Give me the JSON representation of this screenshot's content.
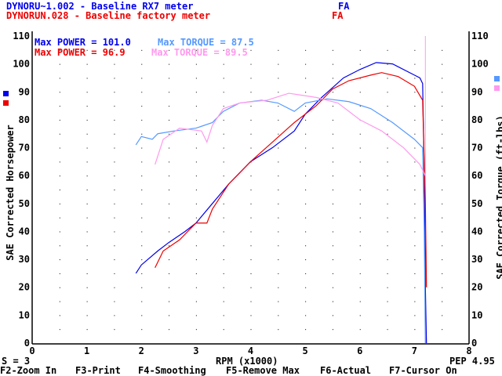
{
  "header": {
    "run1": "DYNORU~1.002 - Baseline RX7 meter",
    "run1_tag": "FA",
    "run2": "DYNORUN.028 - Baseline factory meter",
    "run2_tag": "FA"
  },
  "status": {
    "smoothing": "S = 3",
    "pep": "PEP 4.95"
  },
  "fkeys": [
    "F2-Zoom In",
    "F3-Print",
    "F4-Smoothing",
    "F5-Remove Max",
    "F6-Actual",
    "F7-Cursor On"
  ],
  "colors": {
    "run1_power": "#0000ee",
    "run1_torque": "#5599ff",
    "run2_power": "#ee0000",
    "run2_torque": "#ff99ee"
  },
  "chart_data": {
    "type": "line",
    "xlabel": "RPM (x1000)",
    "ylabel": "SAE Corrected Horsepower",
    "y2label": "SAE Corrected Torque (ft-lbs)",
    "xlim": [
      0,
      8
    ],
    "ylim": [
      0,
      110
    ],
    "xticks": [
      "0",
      "1",
      "2",
      "3",
      "4",
      "5",
      "6",
      "7",
      "8"
    ],
    "yticks": [
      "0",
      "10",
      "20",
      "30",
      "40",
      "50",
      "60",
      "70",
      "80",
      "90",
      "100",
      "110"
    ],
    "grid": "dotted",
    "cursor_rpm": 7.2,
    "legend": [
      {
        "label": "Max POWER = 101.0",
        "color": "#0000ee"
      },
      {
        "label": "Max TORQUE = 87.5",
        "color": "#5599ff"
      },
      {
        "label": "Max POWER = 96.9",
        "color": "#ee0000"
      },
      {
        "label": "Max TORQUE = 89.5",
        "color": "#ff99ee"
      }
    ],
    "series": [
      {
        "name": "run1_power",
        "color": "#0000ee",
        "x": [
          1.9,
          2.0,
          2.3,
          2.5,
          2.8,
          3.0,
          3.3,
          3.6,
          4.0,
          4.4,
          4.8,
          5.0,
          5.3,
          5.7,
          6.0,
          6.3,
          6.6,
          7.0,
          7.1,
          7.15,
          7.18,
          7.2,
          7.22
        ],
        "y": [
          25,
          28,
          33,
          36,
          40,
          43,
          50,
          57,
          65,
          70,
          76,
          82,
          88,
          95,
          98,
          100.5,
          100,
          96,
          95,
          93,
          60,
          20,
          0
        ]
      },
      {
        "name": "run1_torque",
        "color": "#5599ff",
        "x": [
          1.9,
          2.0,
          2.2,
          2.3,
          2.6,
          3.0,
          3.3,
          3.5,
          3.8,
          4.2,
          4.5,
          4.8,
          5.0,
          5.4,
          5.8,
          6.2,
          6.6,
          7.0,
          7.15,
          7.18,
          7.2
        ],
        "y": [
          71,
          74,
          73,
          75,
          76,
          77,
          79,
          83,
          86,
          87,
          86,
          83,
          86,
          87.5,
          86.5,
          84,
          79,
          73,
          70,
          40,
          0
        ]
      },
      {
        "name": "run2_power",
        "color": "#ee0000",
        "x": [
          2.25,
          2.4,
          2.7,
          3.0,
          3.2,
          3.3,
          3.6,
          4.0,
          4.4,
          4.8,
          5.2,
          5.5,
          5.8,
          6.2,
          6.4,
          6.7,
          7.0,
          7.15,
          7.2,
          7.22
        ],
        "y": [
          27,
          33,
          37,
          43,
          43,
          48,
          57,
          65,
          72,
          79,
          85,
          91,
          94,
          96,
          96.9,
          95.5,
          92,
          87,
          50,
          20
        ]
      },
      {
        "name": "run2_torque",
        "color": "#ff99ee",
        "x": [
          2.25,
          2.4,
          2.7,
          3.1,
          3.2,
          3.3,
          3.5,
          3.8,
          4.3,
          4.7,
          5.2,
          5.6,
          6.0,
          6.4,
          6.8,
          7.1,
          7.2
        ],
        "y": [
          64,
          73,
          77,
          76,
          72,
          78,
          84,
          86,
          87,
          89.5,
          88,
          86,
          80,
          76,
          70,
          64,
          60
        ]
      }
    ]
  }
}
